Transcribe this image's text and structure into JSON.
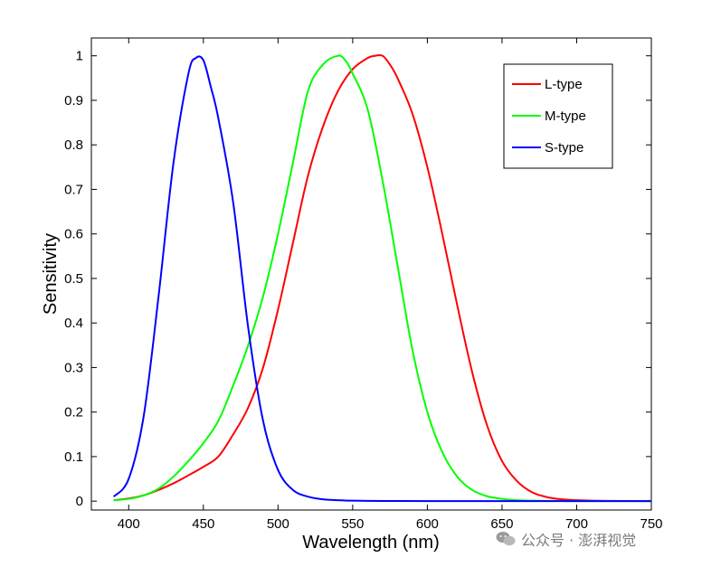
{
  "chart_data": {
    "type": "line",
    "xlabel": "Wavelength (nm)",
    "ylabel": "Sensitivity",
    "xlim": [
      375,
      750
    ],
    "ylim": [
      -0.02,
      1.04
    ],
    "x_ticks": [
      400,
      450,
      500,
      550,
      600,
      650,
      700,
      750
    ],
    "y_ticks": [
      0,
      0.1,
      0.2,
      0.3,
      0.4,
      0.5,
      0.6,
      0.7,
      0.8,
      0.9,
      1
    ],
    "y_tick_labels": [
      "0",
      "0.1",
      "0.2",
      "0.3",
      "0.4",
      "0.5",
      "0.6",
      "0.7",
      "0.8",
      "0.9",
      "1"
    ],
    "grid": false,
    "legend_position": "top-right",
    "series": [
      {
        "name": "L-type",
        "color": "#ff0000",
        "x": [
          390,
          400,
          410,
          420,
          430,
          440,
          450,
          460,
          470,
          480,
          490,
          500,
          510,
          520,
          530,
          540,
          550,
          560,
          565,
          570,
          575,
          580,
          590,
          600,
          610,
          620,
          630,
          640,
          650,
          660,
          670,
          680,
          690,
          700,
          720,
          750
        ],
        "y": [
          0.002,
          0.006,
          0.013,
          0.025,
          0.04,
          0.058,
          0.077,
          0.1,
          0.15,
          0.21,
          0.3,
          0.43,
          0.58,
          0.73,
          0.84,
          0.92,
          0.97,
          0.995,
          1.0,
          1.0,
          0.98,
          0.95,
          0.87,
          0.75,
          0.6,
          0.44,
          0.29,
          0.17,
          0.09,
          0.045,
          0.02,
          0.009,
          0.004,
          0.002,
          0.0005,
          0.0
        ]
      },
      {
        "name": "M-type",
        "color": "#00ff00",
        "x": [
          390,
          400,
          410,
          420,
          430,
          440,
          450,
          460,
          470,
          480,
          490,
          500,
          510,
          520,
          530,
          540,
          545,
          550,
          560,
          570,
          580,
          590,
          600,
          610,
          620,
          630,
          640,
          650,
          660,
          670,
          680,
          690,
          700,
          720,
          750
        ],
        "y": [
          0.002,
          0.005,
          0.013,
          0.028,
          0.055,
          0.09,
          0.13,
          0.18,
          0.26,
          0.35,
          0.46,
          0.6,
          0.76,
          0.92,
          0.98,
          1.0,
          0.99,
          0.96,
          0.88,
          0.72,
          0.53,
          0.34,
          0.2,
          0.11,
          0.055,
          0.025,
          0.011,
          0.005,
          0.002,
          0.001,
          0.0005,
          0.0002,
          0.0001,
          0.0,
          0.0
        ]
      },
      {
        "name": "S-type",
        "color": "#0000ff",
        "x": [
          390,
          400,
          410,
          420,
          430,
          440,
          445,
          450,
          455,
          460,
          470,
          480,
          490,
          500,
          510,
          520,
          530,
          540,
          550,
          560,
          570,
          580,
          600,
          650,
          700,
          750
        ],
        "y": [
          0.01,
          0.05,
          0.19,
          0.46,
          0.76,
          0.96,
          0.995,
          0.99,
          0.93,
          0.86,
          0.67,
          0.39,
          0.18,
          0.07,
          0.025,
          0.01,
          0.004,
          0.002,
          0.001,
          0.0005,
          0.0003,
          0.0002,
          0.0001,
          0.0,
          0.0,
          0.0
        ]
      }
    ]
  },
  "watermark": {
    "text": "公众号 · 澎湃视觉",
    "icon": "wechat-icon"
  }
}
